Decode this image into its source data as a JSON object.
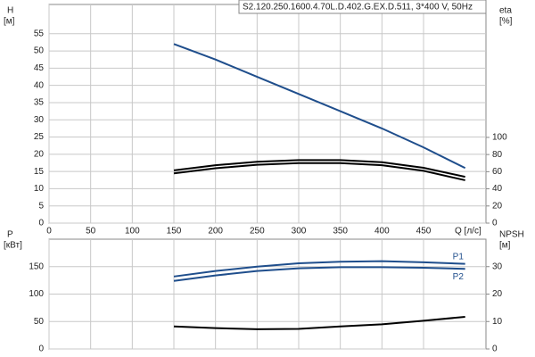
{
  "chart_data": [
    {
      "type": "line",
      "title": "S2.120.250.1600.4.70L.D.402.G.EX.D.511, 3*400 V, 50Hz",
      "ylabel": [
        "H",
        "[м]"
      ],
      "y2label": [
        "eta",
        "[%]"
      ],
      "xlabel": "Q [л/с]",
      "x": [
        150,
        200,
        250,
        300,
        350,
        400,
        450,
        500
      ],
      "xlim": [
        0,
        525
      ],
      "xticks": [
        0,
        50,
        100,
        150,
        200,
        250,
        300,
        350,
        400,
        450
      ],
      "ylim": [
        0,
        63.5
      ],
      "yticks": [
        0,
        5,
        10,
        15,
        20,
        25,
        30,
        35,
        40,
        45,
        50,
        55
      ],
      "y2lim": [
        0,
        255
      ],
      "y2ticks": [
        0,
        20,
        40,
        60,
        80,
        100
      ],
      "grid": true,
      "series": [
        {
          "color": "#1f4e8c",
          "values": [
            52,
            47.5,
            42.5,
            37.5,
            32.5,
            27.5,
            22,
            16
          ]
        },
        {
          "color": "#000000",
          "axis": "y2",
          "values": [
            61.5,
            67.5,
            71.5,
            73.5,
            73.5,
            71,
            64.5,
            54
          ]
        },
        {
          "color": "#000000",
          "axis": "y2",
          "values": [
            58,
            64,
            68,
            70,
            70,
            67.5,
            61,
            50
          ]
        }
      ]
    },
    {
      "type": "line",
      "ylabel": [
        "P",
        "[кВт]"
      ],
      "y2label": [
        "NPSH",
        "[м]"
      ],
      "x": [
        150,
        200,
        250,
        300,
        350,
        400,
        450,
        500
      ],
      "xlim": [
        0,
        525
      ],
      "xticks": [
        0,
        50,
        100,
        150,
        200,
        250,
        300,
        350,
        400,
        450
      ],
      "ylim": [
        0,
        200
      ],
      "yticks": [
        0,
        50,
        100,
        150
      ],
      "y2lim": [
        0,
        40
      ],
      "y2ticks": [
        0,
        10,
        20,
        30
      ],
      "grid": true,
      "series": [
        {
          "name": "P1",
          "color": "#1f4e8c",
          "values": [
            132,
            142,
            150,
            156,
            159,
            160,
            158,
            155
          ]
        },
        {
          "name": "P2",
          "color": "#1f4e8c",
          "values": [
            124,
            134,
            142,
            147,
            149,
            149,
            148,
            146
          ]
        },
        {
          "color": "#000000",
          "axis": "y2",
          "values": [
            8.2,
            7.6,
            7.2,
            7.3,
            8.2,
            9,
            10.3,
            11.7
          ]
        }
      ]
    }
  ]
}
